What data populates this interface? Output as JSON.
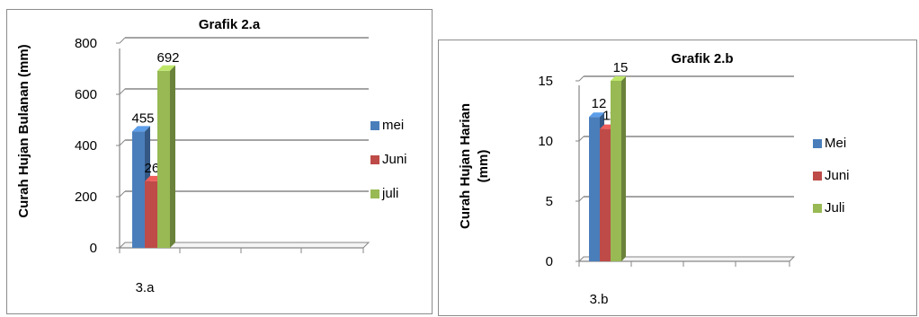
{
  "chart_data": [
    {
      "type": "bar",
      "title": "Grafik 2.a",
      "ylabel": "Curah Hujan Bulanan (mm)",
      "xlabel": "",
      "categories": [
        "3.a"
      ],
      "series": [
        {
          "name": "mei",
          "values": [
            455
          ],
          "color": "#4a7ebb"
        },
        {
          "name": "Juni",
          "values": [
            260
          ],
          "color": "#be4b48"
        },
        {
          "name": "juli",
          "values": [
            692
          ],
          "color": "#98b954"
        }
      ],
      "ylim": [
        0,
        800
      ],
      "yticks": [
        0,
        200,
        400,
        600,
        800
      ],
      "grid": true,
      "legend": "right"
    },
    {
      "type": "bar",
      "title": "Grafik 2.b",
      "ylabel": "Curah Hujan Harian (mm)",
      "ylabel_lines": [
        "Curah Hujan Harian",
        "(mm)"
      ],
      "xlabel": "",
      "categories": [
        "3.b"
      ],
      "series": [
        {
          "name": "Mei",
          "values": [
            12
          ],
          "color": "#4a7ebb"
        },
        {
          "name": "Juni",
          "values": [
            11
          ],
          "color": "#be4b48"
        },
        {
          "name": "Juli",
          "values": [
            15
          ],
          "color": "#98b954"
        }
      ],
      "ylim": [
        0,
        15
      ],
      "yticks": [
        0,
        5,
        10,
        15
      ],
      "grid": true,
      "legend": "right"
    }
  ]
}
